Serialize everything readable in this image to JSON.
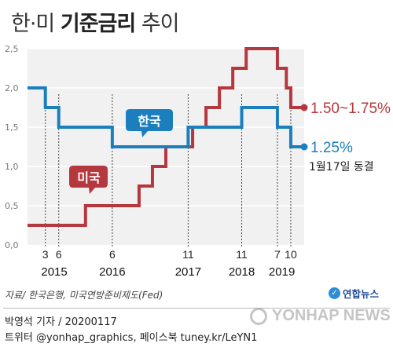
{
  "header": {
    "title_light": "한·미 ",
    "title_bold": "기준금리",
    "title_suffix": " 추이"
  },
  "chart_data": {
    "type": "line",
    "step": true,
    "ylim": [
      0,
      2.5
    ],
    "yticks": [
      "0,0",
      "0,5",
      "1,0",
      "1,5",
      "2,0",
      "2,5"
    ],
    "x_years": [
      "2015",
      "2016",
      "2017",
      "2018",
      "2019"
    ],
    "series": [
      {
        "name": "한국",
        "color": "#1b7fbd",
        "points": [
          [
            "2014-11",
            2.0
          ],
          [
            "2015-03",
            1.75
          ],
          [
            "2015-06",
            1.5
          ],
          [
            "2016-06",
            1.25
          ],
          [
            "2017-11",
            1.5
          ],
          [
            "2018-11",
            1.75
          ],
          [
            "2019-07",
            1.5
          ],
          [
            "2019-10",
            1.25
          ],
          [
            "2020-01",
            1.25
          ]
        ],
        "end_label": "1.25%",
        "end_note": "1월17일 동결"
      },
      {
        "name": "미국",
        "color": "#b5383e",
        "points": [
          [
            "2014-11",
            0.25
          ],
          [
            "2015-12",
            0.5
          ],
          [
            "2016-12",
            0.75
          ],
          [
            "2017-03",
            1.0
          ],
          [
            "2017-06",
            1.25
          ],
          [
            "2017-12",
            1.5
          ],
          [
            "2018-03",
            1.75
          ],
          [
            "2018-06",
            2.0
          ],
          [
            "2018-09",
            2.25
          ],
          [
            "2018-12",
            2.5
          ],
          [
            "2019-07",
            2.25
          ],
          [
            "2019-09",
            2.0
          ],
          [
            "2019-10",
            1.75
          ],
          [
            "2020-01",
            1.75
          ]
        ],
        "end_label": "1.50~1.75%"
      }
    ],
    "korea_change_months": [
      {
        "label": "3",
        "date": "2015-03"
      },
      {
        "label": "6",
        "date": "2015-06"
      },
      {
        "label": "6",
        "date": "2016-06"
      },
      {
        "label": "11",
        "date": "2017-11"
      },
      {
        "label": "11",
        "date": "2018-11"
      },
      {
        "label": "7",
        "date": "2019-07"
      },
      {
        "label": "10",
        "date": "2019-10"
      }
    ]
  },
  "footer": {
    "source": "자료/ 한국은행, 미국연방준비제도(Fed)",
    "brand": "연합뉴스",
    "credit": "박영석 기자 /  20200117",
    "social": "트위터 @yonhap_graphics, 페이스북 tuney.kr/LeYN1",
    "watermark": "YONHAP NEWS"
  }
}
